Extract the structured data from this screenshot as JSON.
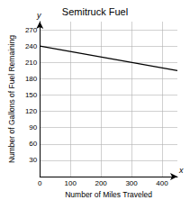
{
  "chart_data": {
    "type": "line",
    "title": "Semitruck Fuel",
    "xlabel": "Number of Miles Traveled",
    "ylabel": "Number of Gallons of Fuel Remaining",
    "annotations": [
      "y",
      "x"
    ],
    "x": [
      0,
      450
    ],
    "values": [
      240,
      195
    ],
    "color": "#000000",
    "xlim": [
      0,
      450
    ],
    "xticks": [
      0,
      100,
      200,
      300,
      400
    ],
    "ylim": [
      0,
      285
    ],
    "yticks": [
      30,
      60,
      90,
      120,
      150,
      180,
      210,
      240,
      270
    ],
    "grid": true
  }
}
